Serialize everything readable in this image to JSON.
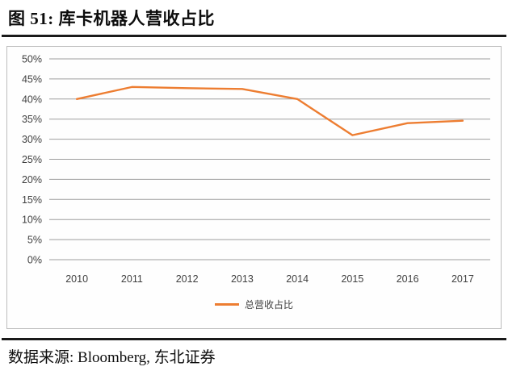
{
  "figure": {
    "title": "图 51: 库卡机器人营收占比",
    "source": "数据来源: Bloomberg, 东北证券"
  },
  "chart_data": {
    "type": "line",
    "title": "库卡机器人营收占比",
    "categories": [
      "2010",
      "2011",
      "2012",
      "2013",
      "2014",
      "2015",
      "2016",
      "2017"
    ],
    "series": [
      {
        "name": "总营收占比",
        "color": "#ED7D31",
        "values": [
          40,
          43,
          42.7,
          42.5,
          40,
          31,
          34,
          34.6
        ]
      }
    ],
    "xlabel": "",
    "ylabel": "",
    "ylim": [
      0,
      50
    ],
    "ytick_step": 5,
    "ytick_suffix": "%",
    "yticks": [
      "0%",
      "5%",
      "10%",
      "15%",
      "20%",
      "25%",
      "30%",
      "35%",
      "40%",
      "45%",
      "50%"
    ],
    "grid": true,
    "legend_position": "bottom-center",
    "colors": {
      "line": "#ED7D31",
      "gridline": "#9e9e9e",
      "tick_text": "#3f3f3f",
      "box_border": "#bdbdbd",
      "divider": "#1a1a1a"
    }
  }
}
